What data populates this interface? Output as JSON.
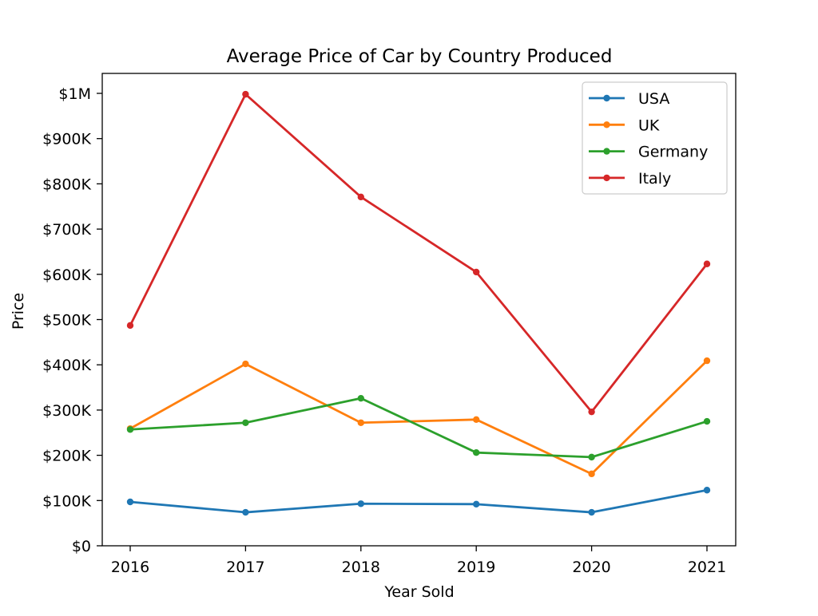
{
  "chart_data": {
    "type": "line",
    "title": "Average Price of Car by Country Produced",
    "xlabel": "Year Sold",
    "ylabel": "Price",
    "x": [
      2016,
      2017,
      2018,
      2019,
      2020,
      2021
    ],
    "xtick_labels": [
      "2016",
      "2017",
      "2018",
      "2019",
      "2020",
      "2021"
    ],
    "ylim": [
      0,
      1040000
    ],
    "yticks": [
      0,
      100000,
      200000,
      300000,
      400000,
      500000,
      600000,
      700000,
      800000,
      900000,
      1000000
    ],
    "ytick_labels": [
      "$0",
      "$100K",
      "$200K",
      "$300K",
      "$400K",
      "$500K",
      "$600K",
      "$700K",
      "$800K",
      "$900K",
      "$1M"
    ],
    "grid": false,
    "legend_position": "top-right",
    "series": [
      {
        "name": "USA",
        "color": "#1f77b4",
        "values": [
          97000,
          74000,
          93000,
          92000,
          74000,
          123000
        ]
      },
      {
        "name": "UK",
        "color": "#ff7f0e",
        "values": [
          259000,
          402000,
          272000,
          279000,
          159000,
          409000
        ]
      },
      {
        "name": "Germany",
        "color": "#2ca02c",
        "values": [
          257000,
          272000,
          326000,
          206000,
          196000,
          275000
        ]
      },
      {
        "name": "Italy",
        "color": "#d62728",
        "values": [
          487000,
          998000,
          771000,
          605000,
          296000,
          623000
        ]
      }
    ]
  }
}
